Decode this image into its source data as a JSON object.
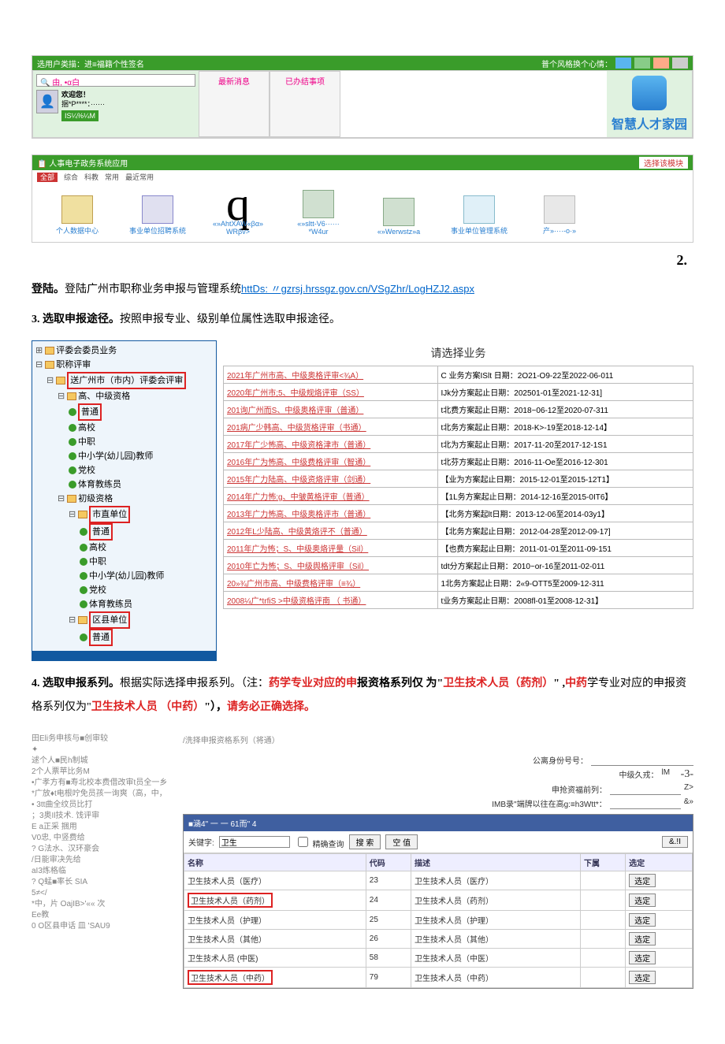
{
  "top": {
    "left_text": "选用户类描：进≡福籍个性签名",
    "right_text": "普个风格换个心情：",
    "search_label": "由,  •α白",
    "welcome": "欢迎您！",
    "uid": "捆*P****：······",
    "badge": "IS¼%¼M",
    "tab1": "最新消息",
    "tab2": "已办结事项",
    "brand": "智慧人才家园"
  },
  "mod": {
    "title": "人事电子政务系统应用",
    "sel": "选择该模块",
    "subtabs": [
      "全部",
      "综合",
      "科教",
      "常用",
      "最近常用"
    ],
    "items": [
      {
        "icon": "doc",
        "label": "个人数据中心"
      },
      {
        "icon": "pen",
        "label": "事业单位招聘系统"
      },
      {
        "icon": "q",
        "label": "«»AhtXAW«βα»<br>WRβv>"
      },
      {
        "icon": "gear",
        "label": "«»sltt-V6······<br>*W4ur"
      },
      {
        "icon": "gear",
        "label": "«»Werwstz»a"
      },
      {
        "icon": "user2",
        "label": "事业单位管理系统"
      },
      {
        "icon": "gray",
        "label": "产»····-o·»"
      }
    ]
  },
  "big2": "2.",
  "p_login": {
    "bold": "登陆。",
    "text": "登陆广州市职称业务申报与管理系统",
    "url": "httDs: 〃gzrsj.hrssgz.gov.cn/VSgZhr/LogHZJ2.aspx"
  },
  "p3": {
    "num": "3",
    "bold": ". 选取申报途径。",
    "rest": "按照申报专业、级别单位属性选取申报途径。"
  },
  "tree": [
    {
      "cls": "folder",
      "lvl": 0,
      "t": "评委会委员业务"
    },
    {
      "cls": "folderO",
      "lvl": 0,
      "t": "职称评审"
    },
    {
      "cls": "folderO redboxed",
      "lvl": 1,
      "t": "送广州市（市内）评委会评审"
    },
    {
      "cls": "folderO",
      "lvl": 2,
      "t": "高、中级资格"
    },
    {
      "cls": "gdot redboxed",
      "lvl": 3,
      "t": "普通"
    },
    {
      "cls": "gdot",
      "lvl": 3,
      "t": "高校"
    },
    {
      "cls": "gdot",
      "lvl": 3,
      "t": "中职"
    },
    {
      "cls": "gdot",
      "lvl": 3,
      "t": "中小学(幼儿园)教师"
    },
    {
      "cls": "gdot",
      "lvl": 3,
      "t": "党校"
    },
    {
      "cls": "gdot",
      "lvl": 3,
      "t": "体育教练员"
    },
    {
      "cls": "folderO",
      "lvl": 2,
      "t": "初级资格"
    },
    {
      "cls": "folderO redboxed",
      "lvl": 3,
      "t": "市直单位"
    },
    {
      "cls": "gdot redboxed",
      "lvl": 4,
      "t": "普通"
    },
    {
      "cls": "gdot",
      "lvl": 4,
      "t": "高校"
    },
    {
      "cls": "gdot",
      "lvl": 4,
      "t": "中职"
    },
    {
      "cls": "gdot",
      "lvl": 4,
      "t": "中小学(幼儿园)教师"
    },
    {
      "cls": "gdot",
      "lvl": 4,
      "t": "党校"
    },
    {
      "cls": "gdot",
      "lvl": 4,
      "t": "体育教练员"
    },
    {
      "cls": "folderO redboxed",
      "lvl": 3,
      "t": "区县单位"
    },
    {
      "cls": "gdot redboxed",
      "lvl": 4,
      "t": "普通"
    }
  ],
  "biz_title": "请选择业务",
  "biz_rows": [
    [
      "2021年广州市高、中级奥格评审<¾A）",
      "C 业务方案ISlt 日期：2O21-O9-22至2022-06-011"
    ],
    [
      "2020年广州市;5、中级规烙评审（SS）",
      "IJk分方案起止日期：202501-01至2021-12-31]"
    ],
    [
      "201询广州而S、中级奥格评审（普通）",
      "t北费方案起止日期：2018~06-12至2020-07-311"
    ],
    [
      "201病广少韩高、中级货格评审（书通）",
      "t北务方案起止日期：2018-K>-19至2018-12-14】"
    ],
    [
      "2017年广少怖高、中级资格津市（普通）",
      "t北为方案起止日期：2017-11-20至2017-12-1S1"
    ],
    [
      "2016年广为怖高、中级费格评审（智通）",
      "t北芬方案起止日期：2016-11-Oe至2016-12-301"
    ],
    [
      "2015年广力陆高、中级资烙评审（剑通）",
      "【业为方案起止日期：2015-12-01至2015-12T1】"
    ],
    [
      "2014年广力怖:g、中皱黄格评审（普通）",
      "【1L务方案起止日期：2014-12-16至2015-0IT6】"
    ],
    [
      "2013年广力怖高、中级奥格评市（普通）",
      "【北务方案起lt日期：2013-12-06至2014-03y1】"
    ],
    [
      "2012年L少陆高、中级黄烙评不（普通）",
      "【北务方案起止日期：2012-04-28至2012-09-17]"
    ],
    [
      "2011年广为怖；S、中级奥烙评量（Sil）",
      "【也费方案起止日期：2011-01-01至2011-09-151"
    ],
    [
      "2010年亡为怖；S、中级舆格评审（Sil）",
      "tdt分方案起止日期：2010~or-16至2011-02-011"
    ],
    [
      "20»¾广州市高、中级费格评审（≡¾）",
      "1北务方案起止日期：2«9-OTT5至2009-12-311"
    ],
    [
      "2008¼广*trfiS >中级资格评南 （ 书通）",
      "t业务方案起止日期：2008fl-01至2008-12-31】"
    ]
  ],
  "p4": {
    "num": "4",
    "bold": ". 选取申报系列。",
    "rest1": "根据实际选择申报系列。（注：",
    "red1": "药学专业对应的申",
    "bold2": "报资格系列仅 为\"",
    "red2": "卫生技术人员（药剂）",
    "bold3": "\" ,",
    "red3": "中药",
    "rest2": "学专业对应的申报资格系列仅为\"",
    "red4": "卫生技术人员 （中药）",
    "bold4": "\"），",
    "red5": "请务必正确选择。"
  },
  "sec5": {
    "left": [
      "田Eli务申核与■创审较",
      "✦",
      "逑个人■民h制城",
      "2个人票苹比务M",
      "•广孝方有■寿北校本费借改审t员全一乡",
      "*广放♦t电根咛免员孩一询爽（高，中，",
      "• 3tt曲全纹员比打",
      "；3奥Il技术. 饯评审",
      "E a正采 捆用",
      "   V0忠, 中竖费给",
      "     ? G法水、汉环豪会",
      "     /日能审决先给",
      "   aI3炼格临",
      "     ? Q蜢■率长 SIA",
      "",
      "        5≠</",
      "       *中，片 OajIB>'«« 次",
      "       Ee教",
      "   0 O区县申话 皿 'SAU9"
    ],
    "head": "/洗择申报资格系列（将通）",
    "f1": "公离身份号号：",
    "f2": "中级久戎：",
    "f2v": "lM",
    "f2b": "-3-",
    "f3": "申抢资福前列：",
    "f3b": "Z>",
    "f4": "IMB录\"端牌以往在高g:≡h3Wtt*：",
    "f4b": "&»",
    "panel_title": "■涵4\" 一 一 61而\" 4",
    "kw_label": "关键字:",
    "kw_value": "卫生",
    "precise": "精确查询",
    "search": "搜 索",
    "blank": "空 值",
    "right_btn": "&.!I",
    "cols": [
      "名称",
      "代码",
      "描述",
      "下属",
      "选定"
    ],
    "rows": [
      [
        "卫生技术人员（医疗）",
        "23",
        "卫生技术人员（医疗）",
        "",
        ""
      ],
      [
        "卫生技术人员（药剂）",
        "24",
        "卫生技术人员（药剂）",
        "",
        "hl"
      ],
      [
        "卫生技术人员（护理）",
        "25",
        "卫生技术人员（护理）",
        "",
        ""
      ],
      [
        "卫生技术人员（其他）",
        "26",
        "卫生技术人员（其他）",
        "",
        ""
      ],
      [
        "卫生技术人员 (中医)",
        "58",
        "卫生技术人员（中医）",
        "",
        ""
      ],
      [
        "卫生技术人员（中药）",
        "79",
        "卫生技术人员（中药）",
        "",
        "hl"
      ]
    ],
    "sel": "选定"
  }
}
